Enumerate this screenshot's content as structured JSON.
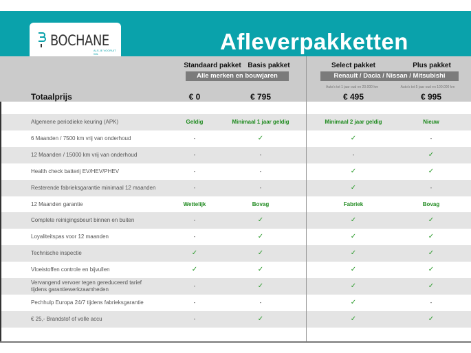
{
  "header": {
    "title": "Afleverpakketten",
    "logo_text": "BOCHANE",
    "logo_tagline": "ALS JE VOORUIT WIL",
    "brand_color": "#0aa2ab"
  },
  "columns": [
    {
      "name": "Standaard pakket",
      "price": "€ 0"
    },
    {
      "name": "Basis pakket",
      "price": "€ 795"
    },
    {
      "name": "Select pakket",
      "price": "€ 495",
      "note": "Auto's tot 1 jaar oud en 20.000 km"
    },
    {
      "name": "Plus pakket",
      "price": "€ 995",
      "note": "Auto's tot 5 jaar oud en 100.000 km"
    }
  ],
  "bands": {
    "left": "Alle merken en bouwjaren",
    "right": "Renault / Dacia / Nissan / Mitsubishi"
  },
  "total_label": "Totaalprijs",
  "rows": [
    {
      "label": "Algemene periodieke keuring (APK)",
      "values": [
        "Geldig",
        "Minimaal 1 jaar geldig",
        "Minimaal 2 jaar geldig",
        "Nieuw"
      ]
    },
    {
      "label": "6 Maanden / 7500 km vrij van onderhoud",
      "values": [
        "-",
        "✓",
        "✓",
        "-"
      ]
    },
    {
      "label": "12 Maanden / 15000 km vrij van onderhoud",
      "values": [
        "-",
        "-",
        "-",
        "✓"
      ]
    },
    {
      "label": "Health check batterij EV/HEV/PHEV",
      "values": [
        "-",
        "-",
        "✓",
        "✓"
      ]
    },
    {
      "label": "Resterende fabrieksgarantie minimaal 12 maanden",
      "values": [
        "-",
        "-",
        "✓",
        "-"
      ]
    },
    {
      "label": "12 Maanden  garantie",
      "values": [
        "Wettelijk",
        "Bovag",
        "Fabriek",
        "Bovag"
      ]
    },
    {
      "label": "Complete reinigingsbeurt binnen en buiten",
      "values": [
        "-",
        "✓",
        "✓",
        "✓"
      ]
    },
    {
      "label": "Loyaliteitspas voor 12 maanden",
      "values": [
        "-",
        "✓",
        "✓",
        "✓"
      ]
    },
    {
      "label": "Technische inspectie",
      "values": [
        "✓",
        "✓",
        "✓",
        "✓"
      ]
    },
    {
      "label": "Vloeistoffen controle en bijvullen",
      "values": [
        "✓",
        "✓",
        "✓",
        "✓"
      ]
    },
    {
      "label": "Vervangend vervoer tegen gereduceerd tarief tijdens garantiewerkzaamheden",
      "values": [
        "-",
        "✓",
        "✓",
        "✓"
      ]
    },
    {
      "label": "Pechhulp Europa 24/7 tijdens fabrieksgarantie",
      "values": [
        "-",
        "-",
        "✓",
        "-"
      ]
    },
    {
      "label": "€ 25,- Brandstof of  volle accu",
      "values": [
        "-",
        "✓",
        "✓",
        "✓"
      ]
    }
  ]
}
